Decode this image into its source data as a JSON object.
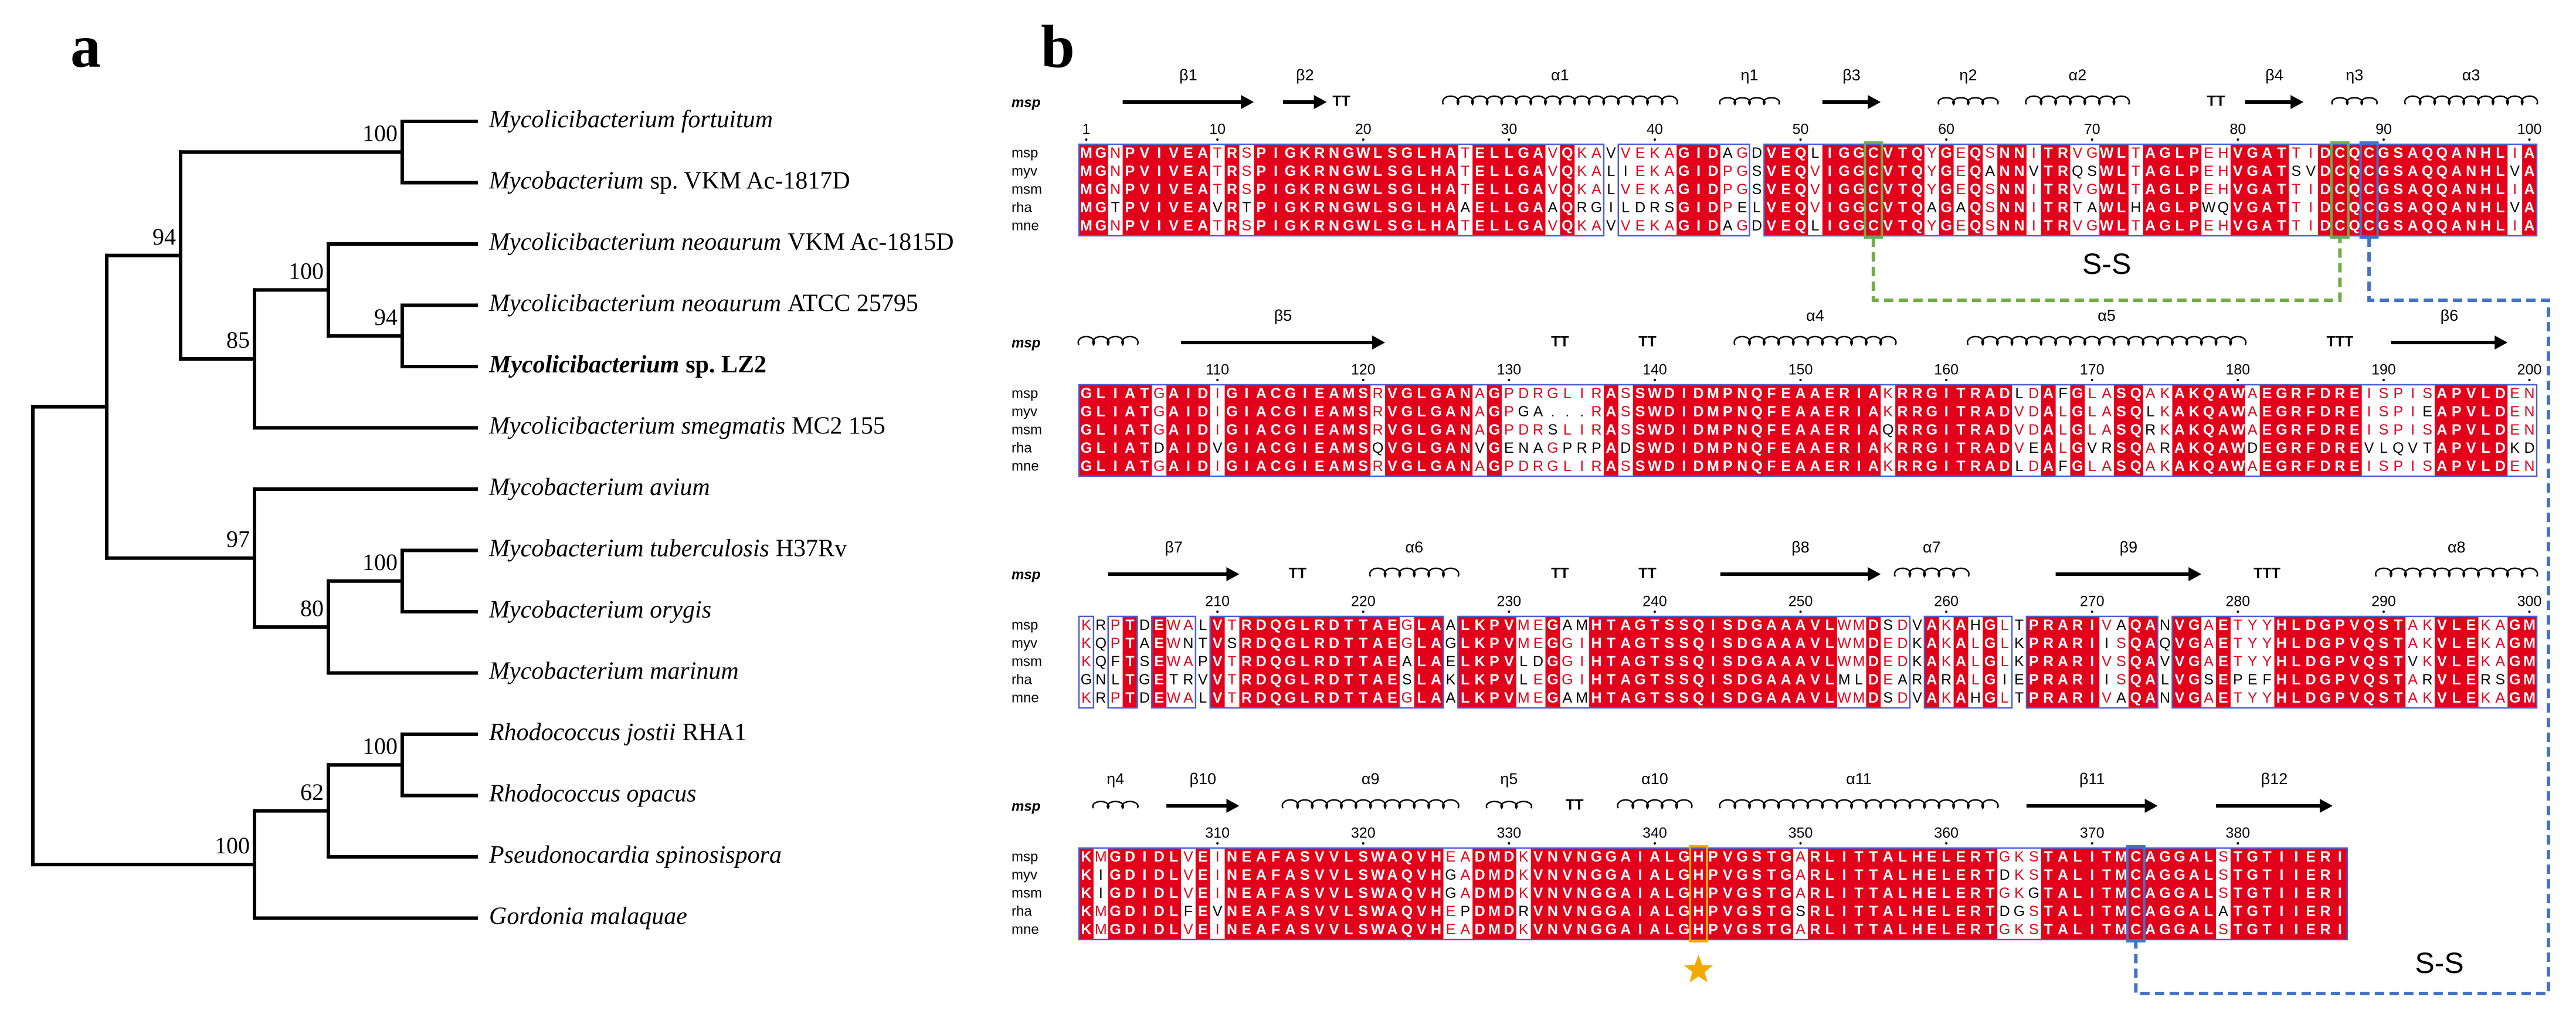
{
  "panel_labels": [
    "a",
    "b"
  ],
  "tree": {
    "children": [
      {
        "children": [
          {
            "support": 94,
            "children": [
              {
                "support": 100,
                "children": [
                  {
                    "species": "Mycolicibacterium fortuitum"
                  },
                  {
                    "species": "Mycobacterium",
                    "strain": "sp. VKM Ac-1817D"
                  }
                ]
              },
              {
                "support": 85,
                "children": [
                  {
                    "support": 100,
                    "children": [
                      {
                        "species": "Mycolicibacterium neoaurum",
                        "strain": "VKM Ac-1815D"
                      },
                      {
                        "support": 94,
                        "children": [
                          {
                            "species": "Mycolicibacterium neoaurum",
                            "strain": "ATCC 25795"
                          },
                          {
                            "species": "Mycolicibacterium",
                            "strain": "sp. LZ2",
                            "bold": true
                          }
                        ]
                      }
                    ]
                  },
                  {
                    "species": "Mycolicibacterium smegmatis",
                    "strain": "MC2 155"
                  }
                ]
              }
            ]
          },
          {
            "support": 97,
            "children": [
              {
                "species": "Mycobacterium avium"
              },
              {
                "support": 80,
                "children": [
                  {
                    "support": 100,
                    "children": [
                      {
                        "species": "Mycobacterium tuberculosis",
                        "strain": "H37Rv"
                      },
                      {
                        "species": "Mycobacterium orygis"
                      }
                    ]
                  },
                  {
                    "species": "Mycobacterium marinum"
                  }
                ]
              }
            ]
          }
        ]
      },
      {
        "support": 100,
        "children": [
          {
            "support": 62,
            "children": [
              {
                "support": 100,
                "children": [
                  {
                    "species": "Rhodococcus jostii",
                    "strain": "RHA1"
                  },
                  {
                    "species": "Rhodococcus opacus"
                  }
                ]
              },
              {
                "species": "Pseudonocardia spinosispora"
              }
            ]
          },
          {
            "species": "Gordonia malaquae"
          }
        ]
      }
    ]
  },
  "alignment": {
    "structure_name": "msp",
    "names": [
      "msp",
      "myv",
      "msm",
      "rha",
      "mne"
    ],
    "identical_color": "#e3001b",
    "frame_color": "#4a5fd0",
    "blocks": [
      {
        "ruler": [
          1,
          10,
          20,
          30,
          40,
          50,
          60,
          70,
          80,
          90,
          100
        ],
        "sequences": [
          "MGNPVIVEATRSPIGKRNGWLSGLHATELLGAVQKAVVEKAGIDAGDVEQLIGGCVTQYGEQSNNITRVGWLTAGLPEHVGATTIDCQCGSAQQANHLIA",
          "MGNPVIVEATRSPIGKRNGWLSGLHATELLGAVQKALIEKAGIDPGSVEQVIGGCVTQYGEQANNVTRQSWLTAGLPEHVGATSVDCQCGSAQQANHLVA",
          "MGNPVIVEATRSPIGKRNGWLSGLHATELLGAVQKALVEKAGIDPGSVEQVIGGCVTQYGEQSNNITRVGWLTAGLPEHVGATTIDCQCGSAQQANHLIA",
          "MGTPVIVEAVRTPIGKRNGWLSGLHAAELLGAAQRGILDRSGIDPELVEQVIGGCVTQAGAQSNNITRTAWLHAGLPWQVGATTIDCQCGSAQQANHLVA",
          "MGNPVIVEATRSPIGKRNGWLSGLHATELLGAVQKAVVEKAGIDAGDVEQLIGGCVTQYGEQSNNITRVGWLTAGLPEHVGATTIDCQCGSAQQANHLIA"
        ],
        "structure": [
          {
            "type": "strand",
            "label": "β1",
            "start": 4,
            "end": 12
          },
          {
            "type": "strand",
            "label": "β2",
            "start": 15,
            "end": 17
          },
          {
            "type": "turn",
            "label": "TT",
            "start": 18,
            "end": 19
          },
          {
            "type": "helix",
            "label": "α1",
            "start": 26,
            "end": 41
          },
          {
            "type": "eta",
            "label": "η1",
            "start": 45,
            "end": 48
          },
          {
            "type": "strand",
            "label": "β3",
            "start": 52,
            "end": 55
          },
          {
            "type": "eta",
            "label": "η2",
            "start": 60,
            "end": 63
          },
          {
            "type": "helix",
            "label": "α2",
            "start": 66,
            "end": 72
          },
          {
            "type": "turn",
            "label": "TT",
            "start": 78,
            "end": 79
          },
          {
            "type": "strand",
            "label": "β4",
            "start": 81,
            "end": 84
          },
          {
            "type": "eta",
            "label": "η3",
            "start": 87,
            "end": 89
          },
          {
            "type": "helix",
            "label": "α3",
            "start": 92,
            "end": 100
          }
        ]
      },
      {
        "ruler": [
          110,
          120,
          130,
          140,
          150,
          160,
          170,
          180,
          190,
          200
        ],
        "sequences": [
          "GLIATGAIDIGIACGIEAMSRVGLGANAGPDRGLIRASSWDIDMPNQFEAAERIAKRRGITRADLDAFGLASQAKAKQAWAEGRFDREISPISAPVLDEN",
          "GLIATGAIDIGIACGIEAMSRVGLGANAGPGA...RASSWDIDMPNQFEAAERIAKRRGITRADVDALGLASQLKAKQAWAEGRFDREISPIEAPVLDEN",
          "GLIATGAIDIGIACGIEAMSRVGLGANAGPDRSLIRASSWDIDMPNQFEAAERIAQRRGITRADVDALGLASQRKAKQAWAEGRFDREISPISAPVLDEN",
          "GLIATDAIDVGIACGIEAMSQVGLGANVGENAGPRPADSWDIDMPNQFEAAERIAKRRGITRADVEALGVRSQARAKQAWDEGRFDREVLQVTAPVLDKD",
          "GLIATGAIDIGIACGIEAMSRVGLGANAGPDRGLIRASSWDIDMPNQFEAAERIAKRRGITRADLDAFGLASQAKAKQAWAEGRFDREISPISAPVLDEN"
        ],
        "structure": [
          {
            "type": "helix",
            "start": 101,
            "end": 104
          },
          {
            "type": "strand",
            "label": "β5",
            "start": 108,
            "end": 121
          },
          {
            "type": "turn",
            "label": "TT",
            "start": 133,
            "end": 134
          },
          {
            "type": "turn",
            "label": "TT",
            "start": 139,
            "end": 140
          },
          {
            "type": "helix",
            "label": "α4",
            "start": 146,
            "end": 156
          },
          {
            "type": "helix",
            "label": "α5",
            "start": 162,
            "end": 180
          },
          {
            "type": "turn",
            "label": "TTT",
            "start": 186,
            "end": 188
          },
          {
            "type": "strand",
            "label": "β6",
            "start": 191,
            "end": 198
          }
        ]
      },
      {
        "ruler": [
          210,
          220,
          230,
          240,
          250,
          260,
          270,
          280,
          290,
          300
        ],
        "sequences": [
          "KRPTDEWALVTRDQGLRDTTAEGLAALKPVMEGAMHTAGTSSQISDGAAAVLWMDSDVAKAHGLTPRARIVAQANVGAETYYHLDGPVQSTAKVLEKAGM",
          "KQPTAEWNTVSRDQGLRDTTAEGLAGLKPVMEGGIHTAGTSSQISDGAAAVLWMDEDKAKALGLKPRARIISQAQVGAETYYHLDGPVQSTAKVLEKAGM",
          "KQFTSEWAPVTRDQGLRDTTAEALAELKPVLDGGIHTAGTSSQISDGAAAVLWMDEDKAKALGLKPRARIVSQAVVGAETYYHLDGPVQSTVKVLEKAGM",
          "GNLTGETRVVTRDQGLRDTTAESLAKLKPVLEGGIHTAGTSSQISDGAAAVLMLDEARARALGIEPRARIISQALVGSEPEFHLDGPVQSTARVLERSGM",
          "KRPTDEWALVTRDQGLRDTTAEGLAALKPVMEGAMHTAGTSSQISDGAAAVLWMDSDVAKAHGLTPRARIVAQANVGAETYYHLDGPVQSTAKVLEKAGM"
        ],
        "structure": [
          {
            "type": "strand",
            "label": "β7",
            "start": 203,
            "end": 211
          },
          {
            "type": "turn",
            "label": "TT",
            "start": 215,
            "end": 216
          },
          {
            "type": "helix",
            "label": "α6",
            "start": 221,
            "end": 226
          },
          {
            "type": "turn",
            "label": "TT",
            "start": 233,
            "end": 234
          },
          {
            "type": "turn",
            "label": "TT",
            "start": 239,
            "end": 240
          },
          {
            "type": "strand",
            "label": "β8",
            "start": 245,
            "end": 255
          },
          {
            "type": "helix",
            "label": "α7",
            "start": 257,
            "end": 261
          },
          {
            "type": "strand",
            "label": "β9",
            "start": 268,
            "end": 277
          },
          {
            "type": "turn",
            "label": "TTT",
            "start": 281,
            "end": 283
          },
          {
            "type": "helix",
            "label": "α8",
            "start": 290,
            "end": 300
          }
        ]
      },
      {
        "ruler": [
          310,
          320,
          330,
          340,
          350,
          360,
          370,
          380
        ],
        "sequences": [
          "KMGDIDLVEINEAFASVVLSWAQVHEADMDKVNVNGGAIALGHPVGSTGARLITTALHELERTGKSTALITMCAGGALSTGTIIERI",
          "KIGDIDLVEINEAFASVVLSWAQVHGADMDKVNVNGGAIALGHPVGSTGARLITTALHELERTDKSTALITMCAGGALSTGTIIERI",
          "KIGDIDLVEINEAFASVVLSWAQVHGADMDKVNVNGGAIALGHPVGSTGARLITTALHELERTGKGTALITMCAGGALSTGTIIERI",
          "KMGDIDLFEVNEAFASVVLSWAQVHEPDMDRVNVNGGAIALGHPVGSTGSRLITTALHELERTDGSTALITMCAGGALATGTIIERI",
          "KMGDIDLVEINEAFASVVLSWAQVHEADMDKVNVNGGAIALGHPVGSTGARLITTALHELERTGKSTALITMCAGGALSTGTIIERI"
        ],
        "structure": [
          {
            "type": "eta",
            "label": "η4",
            "start": 302,
            "end": 304
          },
          {
            "type": "strand",
            "label": "β10",
            "start": 307,
            "end": 311
          },
          {
            "type": "helix",
            "label": "α9",
            "start": 315,
            "end": 326
          },
          {
            "type": "eta",
            "label": "η5",
            "start": 329,
            "end": 331
          },
          {
            "type": "turn",
            "label": "TT",
            "start": 334,
            "end": 335
          },
          {
            "type": "helix",
            "label": "α10",
            "start": 338,
            "end": 342
          },
          {
            "type": "helix",
            "label": "α11",
            "start": 345,
            "end": 363
          },
          {
            "type": "strand",
            "label": "β11",
            "start": 366,
            "end": 374
          },
          {
            "type": "strand",
            "label": "β12",
            "start": 379,
            "end": 386
          }
        ]
      }
    ],
    "disulfides": [
      {
        "label": "S-S",
        "residues": [
          55,
          87
        ],
        "color": "#70ad47"
      },
      {
        "label": "S-S",
        "residues": [
          89,
          373
        ],
        "color": "#4472c4"
      }
    ],
    "highlight": {
      "residue": 343,
      "color": "#f5a800"
    }
  }
}
